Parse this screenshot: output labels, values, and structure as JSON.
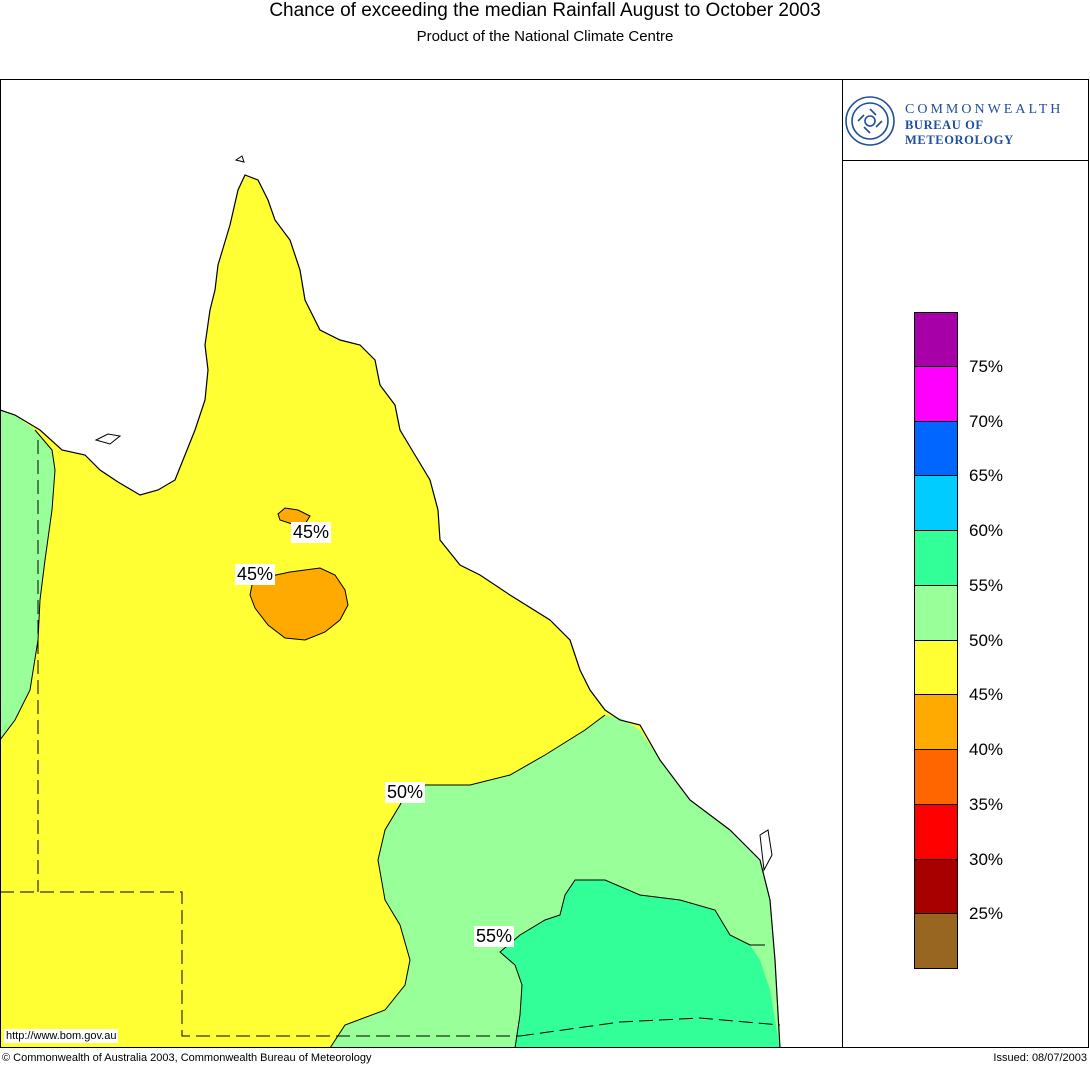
{
  "title": "Chance of exceeding the median Rainfall August to October 2003",
  "subtitle": "Product of the National Climate Centre",
  "logo": {
    "line1": "COMMONWEALTH",
    "line2": "BUREAU OF METEOROLOGY"
  },
  "legend": {
    "swatch_colors": [
      "#a800a8",
      "#ff00ff",
      "#0066ff",
      "#00ccff",
      "#33ff99",
      "#99ff99",
      "#ffff33",
      "#ffaa00",
      "#ff6600",
      "#ff0000",
      "#a80000",
      "#996622"
    ],
    "labels": [
      "75%",
      "70%",
      "65%",
      "60%",
      "55%",
      "50%",
      "45%",
      "40%",
      "35%",
      "30%",
      "25%"
    ]
  },
  "map_labels": [
    "45%",
    "45%",
    "50%",
    "55%"
  ],
  "url": "http://www.bom.gov.au",
  "footer": {
    "copyright": "© Commonwealth of Australia 2003, Commonwealth Bureau of Meteorology",
    "issued": "Issued: 08/07/2003"
  },
  "colors": {
    "band_50_55": "#99ff99",
    "band_45_50": "#ffff33",
    "band_40_45": "#ffaa00",
    "band_55_60": "#33ff99"
  }
}
